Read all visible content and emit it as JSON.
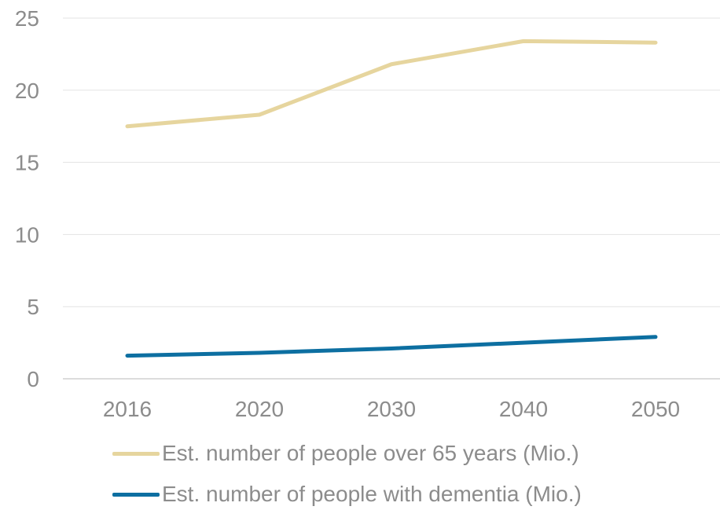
{
  "chart_data": {
    "type": "line",
    "categories": [
      "2016",
      "2020",
      "2030",
      "2040",
      "2050"
    ],
    "ylim": [
      0,
      25
    ],
    "yticks": [
      0,
      5,
      10,
      15,
      20,
      25
    ],
    "grid": true,
    "legend_position": "bottom",
    "series": [
      {
        "name": "Est. number of people over 65 years (Mio.)",
        "color": "#e6d59e",
        "values": [
          17.5,
          18.3,
          21.8,
          23.4,
          23.3
        ]
      },
      {
        "name": "Est. number of people with dementia (Mio.)",
        "color": "#0d6fa1",
        "values": [
          1.6,
          1.8,
          2.1,
          2.5,
          2.9
        ]
      }
    ]
  }
}
